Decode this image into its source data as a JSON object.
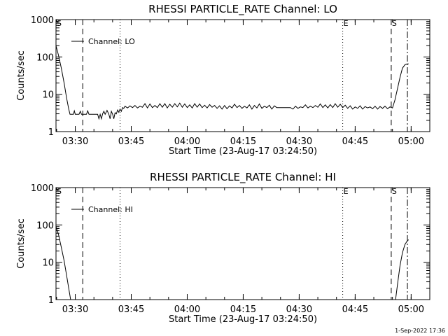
{
  "chart_data": [
    {
      "type": "line",
      "title": "RHESSI PARTICLE_RATE Channel: LO",
      "xlabel": "Start Time (23-Aug-17 03:24:50)",
      "ylabel": "Counts/sec",
      "y_scale": "log",
      "ylim": [
        1,
        1000
      ],
      "y_ticks": [
        1,
        10,
        100,
        1000
      ],
      "y_tick_labels": [
        "1",
        "10",
        "100",
        "1000"
      ],
      "xlim": [
        "03:24:50",
        "05:05:00"
      ],
      "x_tick_labels": [
        "03:30",
        "03:45",
        "04:00",
        "04:15",
        "04:30",
        "04:45",
        "05:00"
      ],
      "legend": {
        "label": "Channel: LO",
        "placement": "top-left"
      },
      "markers": [
        {
          "label": "S",
          "time": "03:24:50",
          "style": "dotted"
        },
        {
          "label": "",
          "time": "03:32:00",
          "style": "dashed"
        },
        {
          "label": "",
          "time": "03:42:00",
          "style": "dotted"
        },
        {
          "label": "E",
          "time": "04:41:40",
          "style": "dotted"
        },
        {
          "label": "S",
          "time": "04:54:40",
          "style": "dashed"
        },
        {
          "label": "",
          "time": "04:59:00",
          "style": "dash-dot"
        }
      ],
      "series": [
        {
          "values": [
            [
              "03:24:50",
              200
            ],
            [
              "03:25:30",
              110
            ],
            [
              "03:26:15",
              50
            ],
            [
              "03:27:00",
              20
            ],
            [
              "03:27:40",
              8
            ],
            [
              "03:28:15",
              4
            ],
            [
              "03:28:35",
              2.9
            ],
            [
              "03:29:30",
              2.9
            ],
            [
              "03:29:45",
              3.6
            ],
            [
              "03:30:00",
              2.9
            ],
            [
              "03:31:00",
              2.9
            ],
            [
              "03:31:20",
              3.5
            ],
            [
              "03:31:40",
              2.9
            ],
            [
              "03:33:00",
              2.9
            ],
            [
              "03:33:20",
              3.6
            ],
            [
              "03:33:40",
              2.9
            ],
            [
              "03:35:00",
              2.9
            ],
            [
              "03:35:30",
              2.9
            ],
            [
              "03:36:00",
              2.9
            ],
            [
              "03:36:20",
              2.2
            ],
            [
              "03:36:40",
              2.9
            ],
            [
              "03:37:00",
              2.2
            ],
            [
              "03:37:20",
              3.0
            ],
            [
              "03:37:40",
              3.5
            ],
            [
              "03:38:00",
              2.9
            ],
            [
              "03:38:30",
              3.7
            ],
            [
              "03:39:00",
              2.9
            ],
            [
              "03:39:20",
              2.2
            ],
            [
              "03:39:40",
              3.5
            ],
            [
              "03:40:00",
              2.9
            ],
            [
              "03:40:20",
              2.2
            ],
            [
              "03:40:40",
              3.2
            ],
            [
              "03:41:00",
              3.0
            ],
            [
              "03:41:20",
              3.8
            ],
            [
              "03:41:40",
              3.3
            ],
            [
              "03:42:00",
              4.0
            ],
            [
              "03:42:20",
              3.5
            ],
            [
              "03:42:40",
              4.4
            ],
            [
              "03:43:00",
              4.2
            ],
            [
              "03:43:20",
              4.8
            ],
            [
              "03:44:00",
              4.3
            ],
            [
              "03:44:40",
              4.9
            ],
            [
              "03:45:20",
              4.4
            ],
            [
              "03:46:00",
              5.0
            ],
            [
              "03:46:40",
              4.3
            ],
            [
              "03:47:20",
              4.8
            ],
            [
              "03:48:00",
              4.5
            ],
            [
              "03:48:40",
              5.6
            ],
            [
              "03:49:20",
              4.3
            ],
            [
              "03:50:00",
              5.5
            ],
            [
              "03:50:40",
              4.4
            ],
            [
              "03:51:20",
              5.0
            ],
            [
              "03:52:00",
              4.4
            ],
            [
              "03:52:40",
              5.6
            ],
            [
              "03:53:20",
              4.5
            ],
            [
              "03:54:00",
              5.6
            ],
            [
              "03:54:40",
              4.3
            ],
            [
              "03:55:20",
              5.4
            ],
            [
              "03:56:00",
              4.5
            ],
            [
              "03:56:40",
              5.6
            ],
            [
              "03:57:20",
              4.6
            ],
            [
              "03:58:00",
              5.8
            ],
            [
              "03:58:40",
              4.5
            ],
            [
              "03:59:20",
              5.5
            ],
            [
              "04:00:00",
              4.4
            ],
            [
              "04:00:40",
              5.2
            ],
            [
              "04:01:20",
              4.3
            ],
            [
              "04:02:00",
              5.6
            ],
            [
              "04:02:40",
              4.5
            ],
            [
              "04:03:20",
              5.5
            ],
            [
              "04:04:00",
              4.4
            ],
            [
              "04:04:40",
              5.1
            ],
            [
              "04:05:20",
              4.3
            ],
            [
              "04:06:00",
              5.3
            ],
            [
              "04:06:40",
              4.5
            ],
            [
              "04:07:20",
              5.0
            ],
            [
              "04:08:00",
              4.2
            ],
            [
              "04:08:40",
              4.9
            ],
            [
              "04:09:20",
              4.0
            ],
            [
              "04:10:00",
              5.0
            ],
            [
              "04:10:40",
              4.1
            ],
            [
              "04:11:20",
              4.9
            ],
            [
              "04:12:00",
              4.3
            ],
            [
              "04:12:40",
              5.4
            ],
            [
              "04:13:20",
              4.4
            ],
            [
              "04:14:00",
              5.0
            ],
            [
              "04:14:40",
              4.2
            ],
            [
              "04:15:20",
              4.8
            ],
            [
              "04:16:00",
              4.3
            ],
            [
              "04:16:40",
              5.2
            ],
            [
              "04:17:20",
              4.0
            ],
            [
              "04:18:00",
              5.0
            ],
            [
              "04:18:40",
              4.3
            ],
            [
              "04:19:20",
              5.5
            ],
            [
              "04:20:00",
              4.2
            ],
            [
              "04:20:40",
              4.8
            ],
            [
              "04:21:20",
              4.4
            ],
            [
              "04:22:00",
              5.1
            ],
            [
              "04:22:40",
              4.0
            ],
            [
              "04:23:20",
              4.9
            ],
            [
              "04:24:00",
              4.4
            ],
            [
              "04:24:40",
              4.4
            ],
            [
              "04:26:00",
              4.4
            ],
            [
              "04:27:00",
              4.4
            ],
            [
              "04:27:40",
              4.4
            ],
            [
              "04:28:20",
              4.0
            ],
            [
              "04:29:00",
              4.8
            ],
            [
              "04:29:40",
              4.2
            ],
            [
              "04:30:20",
              4.6
            ],
            [
              "04:31:00",
              4.4
            ],
            [
              "04:31:40",
              5.2
            ],
            [
              "04:32:20",
              4.3
            ],
            [
              "04:33:00",
              4.8
            ],
            [
              "04:33:40",
              4.4
            ],
            [
              "04:34:20",
              5.0
            ],
            [
              "04:35:00",
              4.5
            ],
            [
              "04:35:40",
              5.5
            ],
            [
              "04:36:20",
              4.4
            ],
            [
              "04:37:00",
              5.2
            ],
            [
              "04:37:40",
              4.3
            ],
            [
              "04:38:20",
              5.3
            ],
            [
              "04:39:00",
              4.4
            ],
            [
              "04:39:40",
              5.6
            ],
            [
              "04:40:20",
              4.5
            ],
            [
              "04:41:00",
              5.4
            ],
            [
              "04:41:40",
              4.4
            ],
            [
              "04:42:20",
              5.1
            ],
            [
              "04:43:00",
              4.2
            ],
            [
              "04:43:40",
              4.9
            ],
            [
              "04:44:20",
              4.0
            ],
            [
              "04:45:00",
              4.6
            ],
            [
              "04:45:40",
              4.2
            ],
            [
              "04:46:20",
              4.9
            ],
            [
              "04:47:00",
              4.0
            ],
            [
              "04:47:40",
              4.7
            ],
            [
              "04:48:20",
              4.3
            ],
            [
              "04:49:00",
              4.6
            ],
            [
              "04:49:40",
              4.1
            ],
            [
              "04:50:20",
              4.8
            ],
            [
              "04:51:00",
              4.0
            ],
            [
              "04:51:40",
              4.7
            ],
            [
              "04:52:20",
              4.2
            ],
            [
              "04:53:00",
              4.8
            ],
            [
              "04:53:40",
              4.1
            ],
            [
              "04:54:20",
              4.6
            ],
            [
              "04:55:00",
              4.3
            ],
            [
              "04:55:40",
              7
            ],
            [
              "04:56:20",
              14
            ],
            [
              "04:57:00",
              28
            ],
            [
              "04:57:40",
              50
            ],
            [
              "04:58:20",
              62
            ],
            [
              "04:59:00",
              65
            ],
            [
              "04:59:20",
              65
            ]
          ]
        }
      ]
    },
    {
      "type": "line",
      "title": "RHESSI PARTICLE_RATE Channel: HI",
      "xlabel": "Start Time (23-Aug-17 03:24:50)",
      "ylabel": "Counts/sec",
      "y_scale": "log",
      "ylim": [
        1,
        1000
      ],
      "y_ticks": [
        1,
        10,
        100,
        1000
      ],
      "y_tick_labels": [
        "1",
        "10",
        "100",
        "1000"
      ],
      "xlim": [
        "03:24:50",
        "05:05:00"
      ],
      "x_tick_labels": [
        "03:30",
        "03:45",
        "04:00",
        "04:15",
        "04:30",
        "04:45",
        "05:00"
      ],
      "legend": {
        "label": "Channel: HI",
        "placement": "top-left"
      },
      "markers": [
        {
          "label": "S",
          "time": "03:24:50",
          "style": "dotted"
        },
        {
          "label": "",
          "time": "03:32:00",
          "style": "dashed"
        },
        {
          "label": "",
          "time": "03:42:00",
          "style": "dotted"
        },
        {
          "label": "E",
          "time": "04:41:40",
          "style": "dotted"
        },
        {
          "label": "S",
          "time": "04:54:40",
          "style": "dashed"
        },
        {
          "label": "",
          "time": "04:59:00",
          "style": "dash-dot"
        }
      ],
      "series": [
        {
          "values": [
            [
              "03:24:50",
              90
            ],
            [
              "03:25:30",
              55
            ],
            [
              "03:26:15",
              25
            ],
            [
              "03:27:00",
              11
            ],
            [
              "03:27:40",
              4.5
            ],
            [
              "03:28:15",
              2
            ],
            [
              "03:28:45",
              1
            ],
            null,
            [
              "04:55:50",
              1
            ],
            [
              "04:56:20",
              2.5
            ],
            [
              "04:57:00",
              8
            ],
            [
              "04:57:40",
              18
            ],
            [
              "04:58:20",
              30
            ],
            [
              "04:59:00",
              38
            ],
            [
              "04:59:20",
              40
            ]
          ]
        }
      ]
    }
  ],
  "footer": {
    "stamp": "1-Sep-2022 17:36"
  }
}
